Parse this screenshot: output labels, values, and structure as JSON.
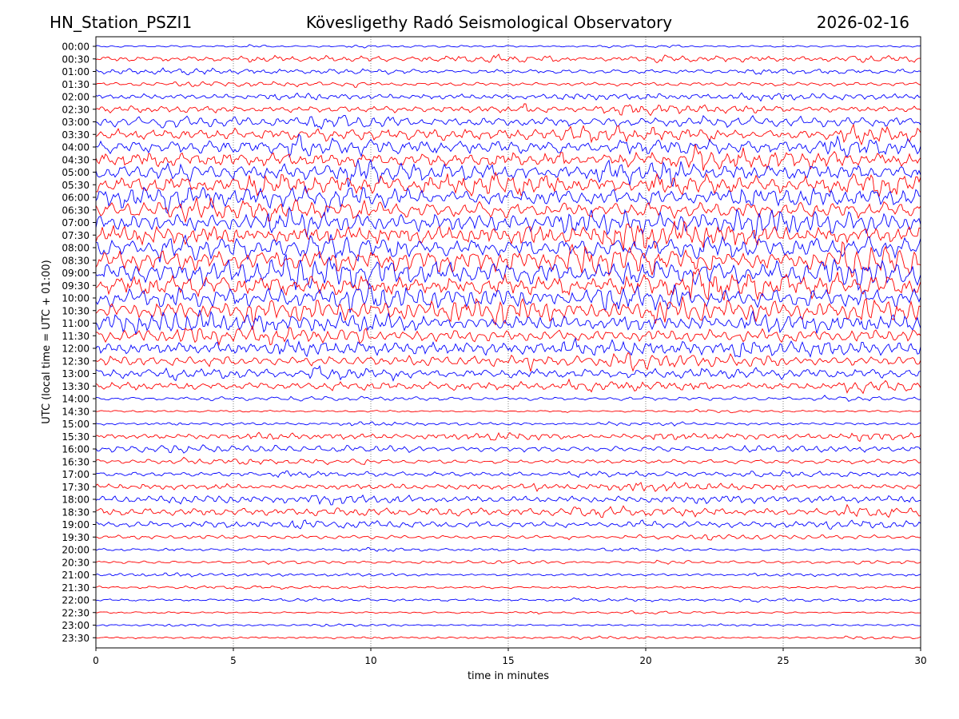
{
  "header": {
    "station": "HN_Station_PSZI1",
    "observatory": "Kövesligethy Radó Seismological Observatory",
    "date": "2026-02-16"
  },
  "chart_data": {
    "type": "line",
    "xlabel": "time in minutes",
    "ylabel": "UTC (local time = UTC + 01:00)",
    "xlim": [
      0,
      30
    ],
    "x_ticks": [
      "0",
      "5",
      "10",
      "15",
      "20",
      "25",
      "30"
    ],
    "grid": "vertical dotted lines at each x tick",
    "row_labels": [
      "00:00",
      "00:30",
      "01:00",
      "01:30",
      "02:00",
      "02:30",
      "03:00",
      "03:30",
      "04:00",
      "04:30",
      "05:00",
      "05:30",
      "06:00",
      "06:30",
      "07:00",
      "07:30",
      "08:00",
      "08:30",
      "09:00",
      "09:30",
      "10:00",
      "10:30",
      "11:00",
      "11:30",
      "12:00",
      "12:30",
      "13:00",
      "13:30",
      "14:00",
      "14:30",
      "15:00",
      "15:30",
      "16:00",
      "16:30",
      "17:00",
      "17:30",
      "18:00",
      "18:30",
      "19:00",
      "19:30",
      "20:00",
      "20:30",
      "21:00",
      "21:30",
      "22:00",
      "22:30",
      "23:00",
      "23:30"
    ],
    "trace_colors": [
      "#0000ff",
      "#ff0000"
    ],
    "relative_amplitude": [
      0.15,
      0.4,
      0.35,
      0.3,
      0.4,
      0.55,
      0.75,
      0.85,
      1.0,
      1.1,
      1.2,
      1.25,
      1.3,
      1.3,
      1.35,
      1.45,
      1.55,
      1.6,
      1.6,
      1.55,
      1.45,
      1.35,
      1.2,
      1.0,
      0.95,
      0.85,
      0.75,
      0.6,
      0.25,
      0.15,
      0.2,
      0.4,
      0.45,
      0.35,
      0.35,
      0.45,
      0.55,
      0.6,
      0.45,
      0.3,
      0.2,
      0.2,
      0.2,
      0.2,
      0.2,
      0.15,
      0.15,
      0.15
    ]
  }
}
